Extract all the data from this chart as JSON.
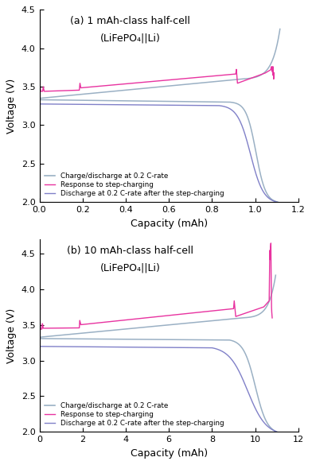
{
  "panel_a": {
    "title_line1": "(a) 1 mAh-class half-cell",
    "title_line2": "(LiFePO₄||Li)",
    "xlim": [
      0,
      1.2
    ],
    "ylim": [
      2.0,
      4.5
    ],
    "xticks": [
      0.0,
      0.2,
      0.4,
      0.6,
      0.8,
      1.0,
      1.2
    ],
    "yticks": [
      2.0,
      2.5,
      3.0,
      3.5,
      4.0,
      4.5
    ],
    "xlabel": "Capacity (mAh)",
    "ylabel": "Voltage (V)"
  },
  "panel_b": {
    "title_line1": "(b) 10 mAh-class half-cell",
    "title_line2": "(LiFePO₄||Li)",
    "xlim": [
      0,
      12
    ],
    "ylim": [
      2.0,
      4.7
    ],
    "xticks": [
      0,
      2,
      4,
      6,
      8,
      10,
      12
    ],
    "yticks": [
      2.0,
      2.5,
      3.0,
      3.5,
      4.0,
      4.5
    ],
    "xlabel": "Capacity (mAh)",
    "ylabel": "Voltage (V)"
  },
  "colors": {
    "charge_discharge": "#9ab0c4",
    "step_charging": "#e833a0",
    "discharge_after": "#8080c8"
  },
  "legend_labels": [
    "Charge/discharge at 0.2 C-rate",
    "Response to step-charging",
    "Discharge at 0.2 C-rate after the step-charging"
  ],
  "background_color": "#ffffff"
}
